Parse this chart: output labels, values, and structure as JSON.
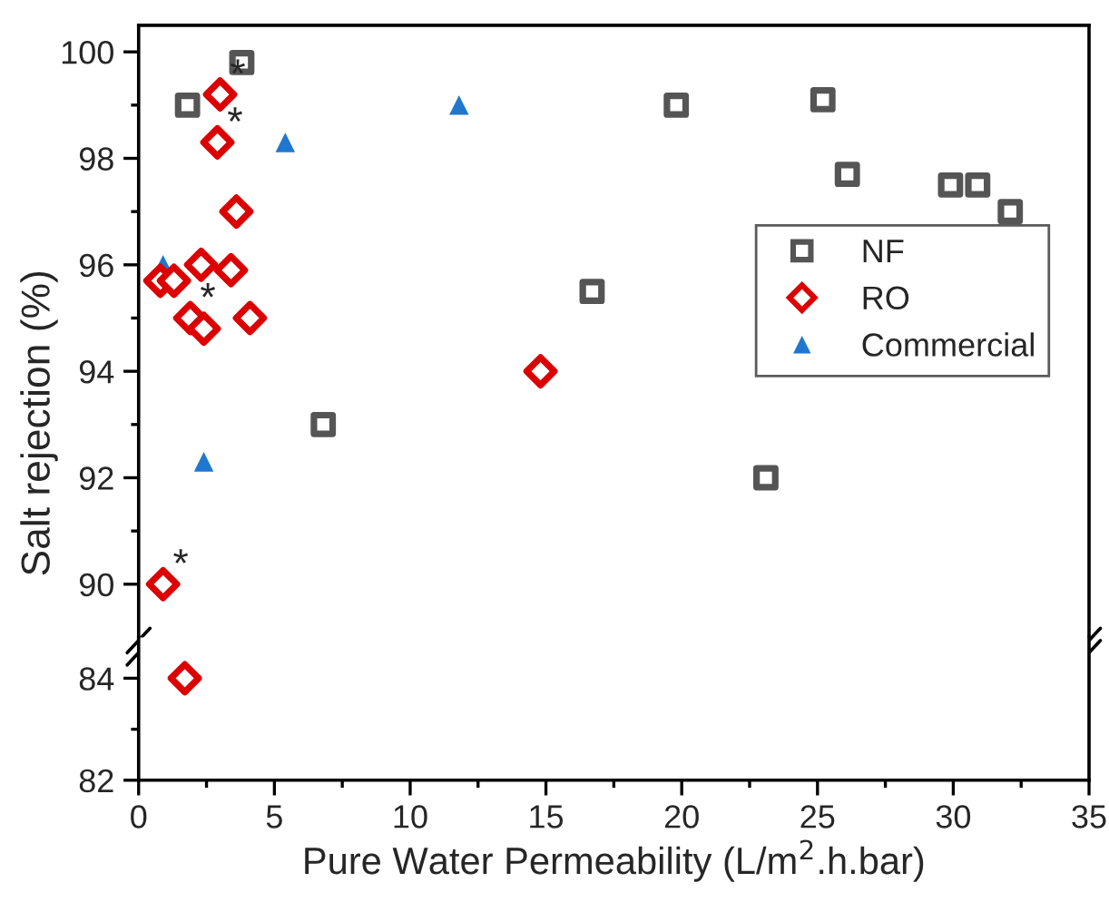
{
  "chart_data": [
    {
      "type": "scatter",
      "ylabel": "Salt rejection (%)",
      "xlim": [
        0,
        35
      ],
      "xticks": [
        0,
        5,
        10,
        15,
        20,
        25,
        30,
        35
      ],
      "ylim": [
        89,
        100.5
      ],
      "yticks": [
        90,
        92,
        94,
        96,
        98,
        100
      ],
      "tick_labels": "y",
      "grid": false,
      "legend": "right",
      "series": [
        {
          "name": "NF",
          "color": "#555555",
          "marker": "square",
          "x": [
            1.8,
            3.8,
            6.8,
            16.7,
            19.8,
            23.1,
            25.2,
            26.1,
            29.9,
            30.9,
            32.1
          ],
          "values": [
            99.0,
            99.8,
            93.0,
            95.5,
            99.0,
            92.0,
            99.1,
            97.7,
            97.5,
            97.5,
            97.0
          ]
        },
        {
          "name": "RO",
          "color": "#dd0000",
          "marker": "diamond",
          "x": [
            3.0,
            2.9,
            3.6,
            2.3,
            3.4,
            0.8,
            1.3,
            1.9,
            2.4,
            4.1,
            14.8,
            0.9
          ],
          "values": [
            99.2,
            98.3,
            97.0,
            96.0,
            95.9,
            95.7,
            95.7,
            95.0,
            94.8,
            95.0,
            94.0,
            90.0
          ]
        },
        {
          "name": "Commercial",
          "color": "#1f77d0",
          "marker": "triangle",
          "x": [
            0.9,
            5.4,
            11.8,
            2.4
          ],
          "values": [
            96.0,
            98.3,
            99.0,
            92.3
          ]
        }
      ],
      "annotations": [
        {
          "text": "*",
          "x": 3.0,
          "y": 99.2
        },
        {
          "text": "*",
          "x": 2.9,
          "y": 98.3
        },
        {
          "text": "*",
          "x": 1.9,
          "y": 95.0
        },
        {
          "text": "*",
          "x": 0.9,
          "y": 90.0
        }
      ]
    },
    {
      "type": "scatter",
      "xlabel": "Pure Water Permeability (L/m$^{2}$.h.bar)",
      "xlim": [
        0,
        35
      ],
      "xticks": [
        0,
        5,
        10,
        15,
        20,
        25,
        30,
        35
      ],
      "ylim": [
        82,
        84.8
      ],
      "yticks": [
        82,
        84
      ],
      "grid": false,
      "series": [
        {
          "color": "#dd0000",
          "marker": "diamond",
          "x": [
            1.7
          ],
          "values": [
            84.0
          ]
        }
      ]
    }
  ]
}
